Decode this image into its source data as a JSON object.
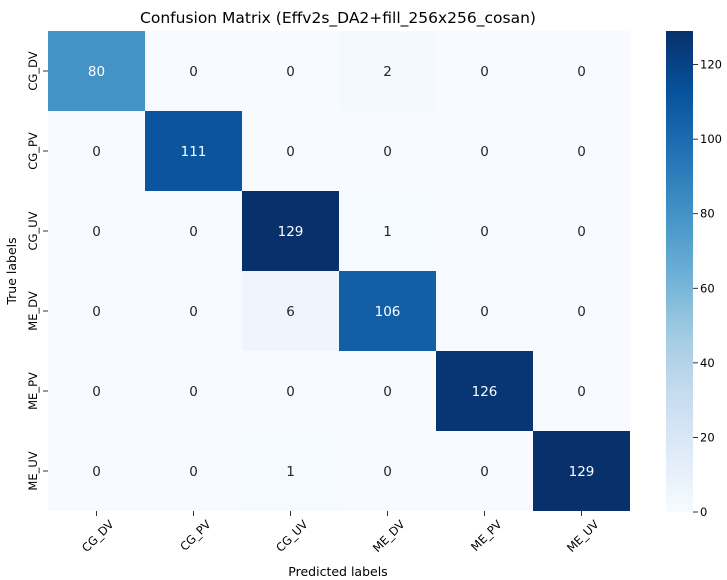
{
  "chart_data": {
    "type": "heatmap",
    "title": "Confusion Matrix (Effv2s_DA2+fill_256x256_cosan)",
    "xlabel": "Predicted labels",
    "ylabel": "True labels",
    "x_categories": [
      "CG_DV",
      "CG_PV",
      "CG_UV",
      "ME_DV",
      "ME_PV",
      "ME_UV"
    ],
    "y_categories": [
      "CG_DV",
      "CG_PV",
      "CG_UV",
      "ME_DV",
      "ME_PV",
      "ME_UV"
    ],
    "values": [
      [
        80,
        0,
        0,
        2,
        0,
        0
      ],
      [
        0,
        111,
        0,
        0,
        0,
        0
      ],
      [
        0,
        0,
        129,
        1,
        0,
        0
      ],
      [
        0,
        0,
        6,
        106,
        0,
        0
      ],
      [
        0,
        0,
        0,
        0,
        126,
        0
      ],
      [
        0,
        0,
        1,
        0,
        0,
        129
      ]
    ],
    "colormap": "Blues",
    "color_range": [
      0,
      129
    ],
    "colorbar": {
      "ticks": [
        0,
        20,
        40,
        60,
        80,
        100,
        120
      ]
    },
    "annotations": true
  }
}
